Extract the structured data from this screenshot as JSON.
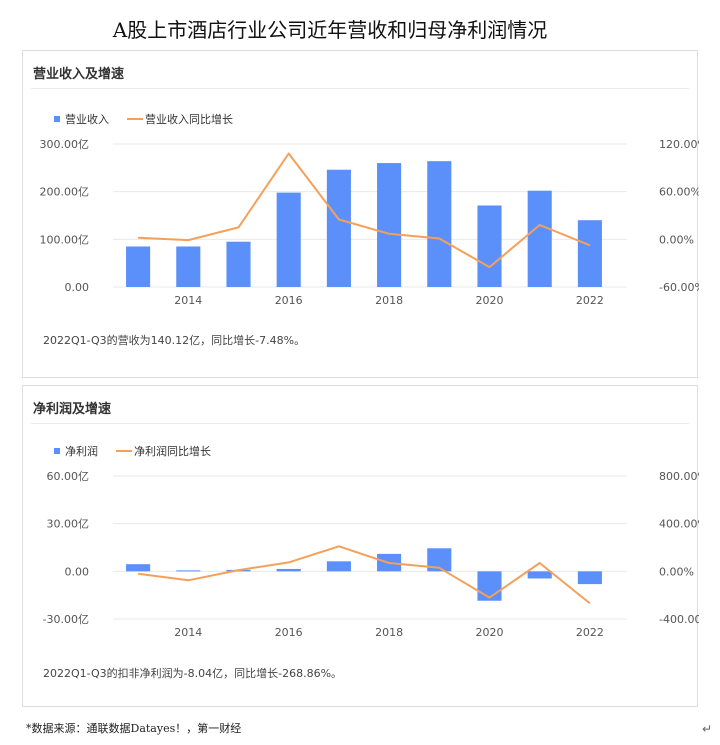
{
  "page": {
    "title": "A股上市酒店行业公司近年营收和归母净利润情况",
    "footnote": "*数据来源：通联数据Datayes！，第一财经",
    "return_symbol": "↵"
  },
  "colors": {
    "bar": "#5b8ff9",
    "line": "#f5a05a",
    "grid": "#e9e9e9",
    "axis_text": "#555555"
  },
  "chart_data": [
    {
      "type": "bar",
      "title": "营业收入及增速",
      "note": "2022Q1-Q3的营收为140.12亿，同比增长-7.48%。",
      "x": [
        2013,
        2014,
        2015,
        2016,
        2017,
        2018,
        2019,
        2020,
        2021,
        2022
      ],
      "xticks": [
        "2014",
        "2016",
        "2018",
        "2020",
        "2022"
      ],
      "series": [
        {
          "name": "营业收入",
          "type": "bar",
          "axis": "left",
          "values": [
            85,
            85,
            95,
            198,
            246,
            260,
            264,
            171,
            202,
            140.12
          ]
        },
        {
          "name": "营业收入同比增长",
          "type": "line",
          "axis": "right",
          "values": [
            2,
            -1,
            15,
            108,
            25,
            7,
            1,
            -35,
            18,
            -7.48
          ]
        }
      ],
      "y_left": {
        "min": 0,
        "max": 300,
        "ticks": [
          0,
          100,
          200,
          300
        ],
        "tick_labels": [
          "0.00",
          "100.00亿",
          "200.00亿",
          "300.00亿"
        ]
      },
      "y_right": {
        "min": -60,
        "max": 120,
        "ticks": [
          -60,
          0,
          60,
          120
        ],
        "tick_labels": [
          "-60.00%",
          "0.00%",
          "60.00%",
          "120.00%"
        ]
      },
      "legend_position": "top-left",
      "grid": true
    },
    {
      "type": "bar",
      "title": "净利润及增速",
      "note": "2022Q1-Q3的扣非净利润为-8.04亿，同比增长-268.86%。",
      "x": [
        2013,
        2014,
        2015,
        2016,
        2017,
        2018,
        2019,
        2020,
        2021,
        2022
      ],
      "xticks": [
        "2014",
        "2016",
        "2018",
        "2020",
        "2022"
      ],
      "series": [
        {
          "name": "净利润",
          "type": "bar",
          "axis": "left",
          "values": [
            4.5,
            0.6,
            0.9,
            1.5,
            6.3,
            11,
            14.5,
            -18.5,
            -4.5,
            -8.04
          ]
        },
        {
          "name": "净利润同比增长",
          "type": "line",
          "axis": "right",
          "values": [
            -20,
            -75,
            10,
            75,
            210,
            70,
            30,
            -220,
            70,
            -268.86
          ]
        }
      ],
      "y_left": {
        "min": -30,
        "max": 60,
        "ticks": [
          -30,
          0,
          30,
          60
        ],
        "tick_labels": [
          "-30.00亿",
          "0.00",
          "30.00亿",
          "60.00亿"
        ]
      },
      "y_right": {
        "min": -400,
        "max": 800,
        "ticks": [
          -400,
          0,
          400,
          800
        ],
        "tick_labels": [
          "-400.00%",
          "0.00%",
          "400.00%",
          "800.00%"
        ]
      },
      "legend_position": "top-left",
      "grid": true
    }
  ]
}
